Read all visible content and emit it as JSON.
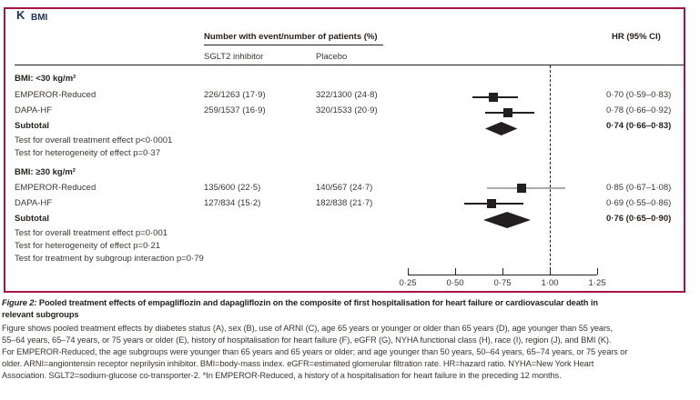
{
  "panel": {
    "letter": "K",
    "title": "BMI"
  },
  "table": {
    "group_header": "Number with event/number of patients (%)",
    "col_sglt2": "SGLT2 inhibitor",
    "col_placebo": "Placebo",
    "hr_header": "HR (95% CI)"
  },
  "groups": [
    {
      "heading": "BMI: <30 kg/m²",
      "rows": [
        {
          "label": "EMPEROR-Reduced",
          "sglt2": "226/1263 (17·9)",
          "placebo": "322/1300 (24·8)",
          "hr": "0·70 (0·59–0·83)"
        },
        {
          "label": "DAPA-HF",
          "sglt2": "259/1537 (16·9)",
          "placebo": "320/1533 (20·9)",
          "hr": "0·78 (0·66–0·92)"
        }
      ],
      "subtotal": {
        "label": "Subtotal",
        "hr": "0·74 (0·66–0·83)"
      },
      "tests": [
        "Test for overall treatment effect p<0·0001",
        "Test for heterogeneity of effect p=0·37"
      ]
    },
    {
      "heading": "BMI: ≥30 kg/m²",
      "rows": [
        {
          "label": "EMPEROR-Reduced",
          "sglt2": "135/600 (22·5)",
          "placebo": "140/567 (24·7)",
          "hr": "0·85 (0·67–1·08)"
        },
        {
          "label": "DAPA-HF",
          "sglt2": "127/834 (15·2)",
          "placebo": "182/838 (21·7)",
          "hr": "0·69 (0·55–0·86)"
        }
      ],
      "subtotal": {
        "label": "Subtotal",
        "hr": "0·76 (0·65–0·90)"
      },
      "tests": [
        "Test for overall treatment effect p=0·001",
        "Test for heterogeneity of effect p=0·21",
        "Test for treatment by subgroup interaction p=0·79"
      ]
    }
  ],
  "chart_data": {
    "type": "scatter",
    "subtype": "forest-plot",
    "xlabel": "HR (95% CI)",
    "xlim": [
      0.25,
      1.25
    ],
    "x_ticks": [
      0.25,
      0.5,
      0.75,
      1.0,
      1.25
    ],
    "x_tick_labels": [
      "0·25",
      "0·50",
      "0·75",
      "1·00",
      "1·25"
    ],
    "reference_line": 1.0,
    "marker_color": "#231f20",
    "groups": [
      {
        "name": "BMI: <30 kg/m²",
        "points": [
          {
            "label": "EMPEROR-Reduced",
            "hr": 0.7,
            "ci": [
              0.59,
              0.83
            ],
            "marker": "square"
          },
          {
            "label": "DAPA-HF",
            "hr": 0.78,
            "ci": [
              0.66,
              0.92
            ],
            "marker": "square"
          },
          {
            "label": "Subtotal",
            "hr": 0.74,
            "ci": [
              0.66,
              0.83
            ],
            "marker": "diamond"
          }
        ]
      },
      {
        "name": "BMI: ≥30 kg/m²",
        "points": [
          {
            "label": "EMPEROR-Reduced",
            "hr": 0.85,
            "ci": [
              0.67,
              1.08
            ],
            "marker": "square",
            "line_color": "#ababab"
          },
          {
            "label": "DAPA-HF",
            "hr": 0.69,
            "ci": [
              0.55,
              0.86
            ],
            "marker": "square"
          },
          {
            "label": "Subtotal",
            "hr": 0.76,
            "ci": [
              0.65,
              0.9
            ],
            "marker": "diamond"
          }
        ]
      }
    ]
  },
  "caption": {
    "label": "Figure 2:",
    "title_line1": " Pooled treatment effects of empagliflozin and dapagliflozin on the composite of first hospitalisation for heart failure or cardiovascular death in",
    "title_line2": "relevant subgroups",
    "body_lines": [
      "Figure shows pooled treatment effects by diabetes status (A), sex (B), use of ARNI (C), age 65 years or younger or older than 65 years (D), age younger than 55 years,",
      "55–64 years, 65–74 years, or 75 years or older (E), history of hospitalisation for heart failure (F), eGFR (G), NYHA functional class (H), race (I), region (J), and BMI (K).",
      "For EMPEROR-Reduced, the age subgroups were younger than 65 years and 65 years or older; and age younger than 50 years, 50–64 years, 65–74 years, or 75 years or",
      "older. ARNI=angiontensin receptor neprilysin inhibitor. BMI=body-mass index. eGFR=estimated glomerular filtration rate. HR=hazard ratio. NYHA=New York Heart",
      "Association. SGLT2=sodium-glucose co-transporter-2. *In EMPEROR-Reduced, a history of a hospitalisation for heart failure in the preceding 12 months."
    ]
  },
  "colors": {
    "border": "#a61643",
    "panel_label": "#1d3160",
    "ink": "#241f1c"
  }
}
